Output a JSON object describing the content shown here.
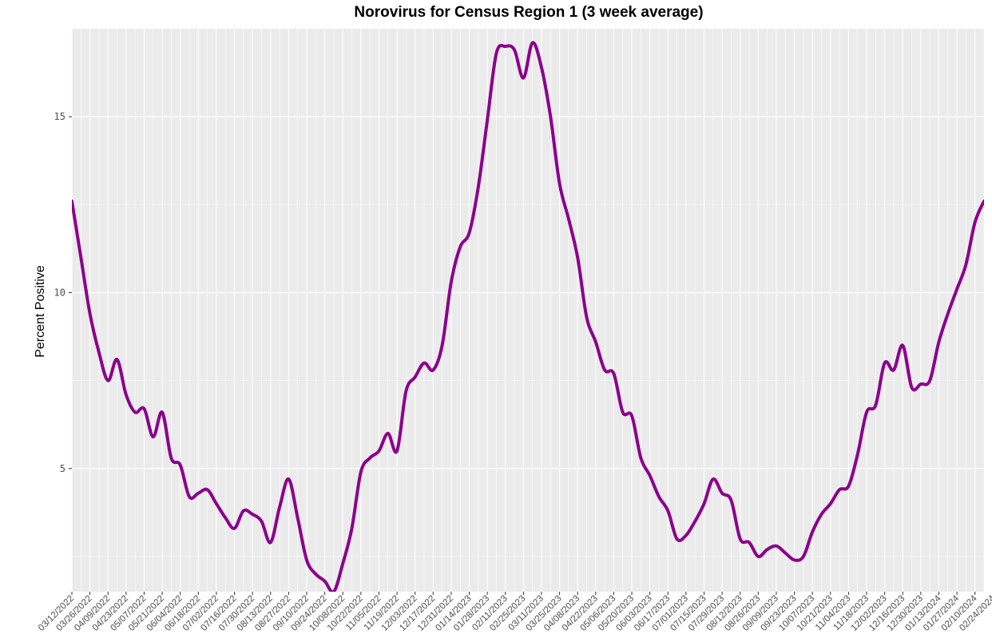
{
  "chart_data": {
    "type": "line",
    "title": "Norovirus for Census Region 1 (3 week average)",
    "xlabel": "",
    "ylabel": "Percent Positive",
    "ylim": [
      1.5,
      17.5
    ],
    "yticks": [
      5,
      10,
      15
    ],
    "grid": true,
    "legend": "none",
    "x_start": "03/12/2022",
    "x_end": "03/09/2024",
    "x_interval_days": 7,
    "xtick_labels": [
      "03/12/2022",
      "03/26/2022",
      "04/09/2022",
      "04/23/2022",
      "05/07/2022",
      "05/21/2022",
      "06/04/2022",
      "06/18/2022",
      "07/02/2022",
      "07/16/2022",
      "07/30/2022",
      "08/13/2022",
      "08/27/2022",
      "09/10/2022",
      "09/24/2022",
      "10/08/2022",
      "10/22/2022",
      "11/05/2022",
      "11/19/2022",
      "12/03/2022",
      "12/17/2022",
      "12/31/2022",
      "01/14/2023",
      "01/28/2023",
      "02/11/2023",
      "02/25/2023",
      "03/11/2023",
      "03/25/2023",
      "04/08/2023",
      "04/22/2023",
      "05/06/2023",
      "05/20/2023",
      "06/03/2023",
      "06/17/2023",
      "07/01/2023",
      "07/15/2023",
      "07/29/2023",
      "08/12/2023",
      "08/26/2023",
      "09/09/2023",
      "09/23/2023",
      "10/07/2023",
      "10/21/2023",
      "11/04/2023",
      "11/18/2023",
      "12/02/2023",
      "12/16/2023",
      "12/30/2023",
      "01/13/2024",
      "01/27/2024",
      "02/10/2024",
      "02/24/2024"
    ],
    "series": [
      {
        "name": "",
        "color": "#8b008b",
        "values": [
          12.6,
          11.0,
          9.4,
          8.3,
          7.5,
          8.1,
          7.1,
          6.6,
          6.7,
          5.9,
          6.6,
          5.3,
          5.1,
          4.2,
          4.3,
          4.4,
          4.0,
          3.6,
          3.3,
          3.8,
          3.7,
          3.5,
          2.9,
          3.9,
          4.7,
          3.6,
          2.4,
          2.0,
          1.8,
          1.5,
          2.3,
          3.3,
          4.9,
          5.3,
          5.5,
          6.0,
          5.5,
          7.2,
          7.6,
          8.0,
          7.8,
          8.5,
          10.3,
          11.3,
          11.7,
          13.0,
          14.9,
          16.8,
          17.0,
          16.9,
          16.1,
          17.1,
          16.4,
          15.0,
          13.1,
          12.1,
          11.0,
          9.3,
          8.6,
          7.8,
          7.7,
          6.6,
          6.5,
          5.3,
          4.8,
          4.2,
          3.8,
          3.0,
          3.1,
          3.5,
          4.0,
          4.7,
          4.3,
          4.1,
          3.0,
          2.9,
          2.5,
          2.7,
          2.8,
          2.6,
          2.4,
          2.5,
          3.2,
          3.7,
          4.0,
          4.4,
          4.5,
          5.4,
          6.6,
          6.8,
          8.0,
          7.8,
          8.5,
          7.3,
          7.4,
          7.5,
          8.6,
          9.4,
          10.1,
          10.8,
          12.0,
          12.6
        ]
      }
    ]
  }
}
